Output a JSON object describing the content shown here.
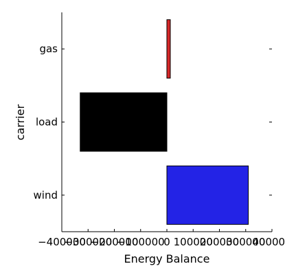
{
  "chart_data": {
    "type": "bar",
    "orientation": "horizontal",
    "categories": [
      "gas",
      "load",
      "wind"
    ],
    "values": [
      1500,
      -330000,
      310000
    ],
    "colors": [
      "#d62728",
      "#000000",
      "#2323e6"
    ],
    "title": "",
    "xlabel": "Energy Balance",
    "ylabel": "carrier",
    "xlim": [
      -400000,
      400000
    ],
    "xticks": [
      -400000,
      -300000,
      -200000,
      -100000,
      0,
      100000,
      200000,
      300000,
      400000
    ],
    "xtick_labels": [
      "−400000",
      "−300000",
      "−200000",
      "−100000",
      "0",
      "100000",
      "200000",
      "300000",
      "400000"
    ],
    "grid": false,
    "legend": "none"
  }
}
